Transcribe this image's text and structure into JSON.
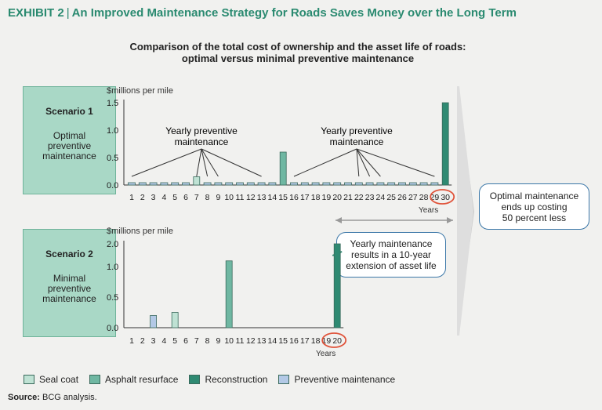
{
  "header": {
    "exhibit_label": "EXHIBIT 2",
    "separator": "|",
    "title": "An Improved Maintenance Strategy for Roads Saves Money over the Long Term"
  },
  "subtitle": {
    "line1": "Comparison of the total cost of ownership and the asset life of roads:",
    "line2": "optimal versus minimal preventive maintenance"
  },
  "scenario1": {
    "title": "Scenario 1",
    "desc": [
      "Optimal",
      "preventive",
      "maintenance"
    ]
  },
  "scenario2": {
    "title": "Scenario 2",
    "desc": [
      "Minimal",
      "preventive",
      "maintenance"
    ]
  },
  "annotations": {
    "yearly1": [
      "Yearly preventive",
      "maintenance"
    ],
    "yearly2": [
      "Yearly preventive",
      "maintenance"
    ],
    "callout_ext": [
      "Yearly maintenance",
      "results in a 10-year",
      "extension of asset life"
    ],
    "callout_cost": [
      "Optimal maintenance",
      "ends up costing",
      "50 percent less"
    ]
  },
  "legend": [
    {
      "label": "Seal coat",
      "color": "#bfe2d4"
    },
    {
      "label": "Asphalt resurface",
      "color": "#6fb7a2"
    },
    {
      "label": "Reconstruction",
      "color": "#2f8a72"
    },
    {
      "label": "Preventive maintenance",
      "color": "#b3c9e6"
    }
  ],
  "source": {
    "label": "Source:",
    "text": "BCG analysis."
  },
  "chart_data": [
    {
      "type": "bar",
      "ylabel": "$millions per mile",
      "xlabel": "Years",
      "ylim": [
        0,
        1.5
      ],
      "yticks": [
        "0.0",
        "0.5",
        "1.0",
        "1.5"
      ],
      "categories": [
        "1",
        "2",
        "3",
        "4",
        "5",
        "6",
        "7",
        "8",
        "9",
        "10",
        "11",
        "12",
        "13",
        "14",
        "15",
        "16",
        "17",
        "18",
        "19",
        "20",
        "21",
        "22",
        "23",
        "24",
        "25",
        "26",
        "27",
        "28",
        "29",
        "30"
      ],
      "highlight_category": "30",
      "series": [
        {
          "name": "Preventive maintenance",
          "values": [
            0.02,
            0.02,
            0.02,
            0.02,
            0.02,
            0.02,
            0,
            0.02,
            0.02,
            0.02,
            0.02,
            0.02,
            0.02,
            0.02,
            0,
            0.02,
            0.02,
            0.02,
            0.02,
            0.02,
            0.02,
            0.02,
            0.02,
            0.02,
            0.02,
            0.02,
            0.02,
            0.02,
            0.02,
            0
          ]
        },
        {
          "name": "Seal coat",
          "values": [
            0,
            0,
            0,
            0,
            0,
            0,
            0.15,
            0,
            0,
            0,
            0,
            0,
            0,
            0,
            0,
            0,
            0,
            0,
            0,
            0,
            0,
            0,
            0,
            0,
            0,
            0,
            0,
            0,
            0,
            0
          ]
        },
        {
          "name": "Asphalt resurface",
          "values": [
            0,
            0,
            0,
            0,
            0,
            0,
            0,
            0,
            0,
            0,
            0,
            0,
            0,
            0,
            0.6,
            0,
            0,
            0,
            0,
            0,
            0,
            0,
            0,
            0,
            0,
            0,
            0,
            0,
            0,
            0
          ]
        },
        {
          "name": "Reconstruction",
          "values": [
            0,
            0,
            0,
            0,
            0,
            0,
            0,
            0,
            0,
            0,
            0,
            0,
            0,
            0,
            0,
            0,
            0,
            0,
            0,
            0,
            0,
            0,
            0,
            0,
            0,
            0,
            0,
            0,
            0,
            1.5
          ]
        }
      ]
    },
    {
      "type": "bar",
      "ylabel": "$millions per mile",
      "xlabel": "Years",
      "ylim": [
        0,
        2.0
      ],
      "yticks": [
        "0.0",
        "0.5",
        "1.0",
        "2.0"
      ],
      "axis_break": true,
      "categories": [
        "1",
        "2",
        "3",
        "4",
        "5",
        "6",
        "7",
        "8",
        "9",
        "10",
        "11",
        "12",
        "13",
        "14",
        "15",
        "16",
        "17",
        "18",
        "19",
        "20"
      ],
      "highlight_category": "20",
      "series": [
        {
          "name": "Preventive maintenance",
          "values": [
            0,
            0,
            0.2,
            0,
            0,
            0,
            0,
            0,
            0,
            0,
            0,
            0,
            0,
            0,
            0,
            0,
            0,
            0,
            0,
            0
          ]
        },
        {
          "name": "Seal coat",
          "values": [
            0,
            0,
            0,
            0,
            0.25,
            0,
            0,
            0,
            0,
            0,
            0,
            0,
            0,
            0,
            0,
            0,
            0,
            0,
            0,
            0
          ]
        },
        {
          "name": "Asphalt resurface",
          "values": [
            0,
            0,
            0,
            0,
            0,
            0,
            0,
            0,
            0,
            1.25,
            0,
            0,
            0,
            0,
            0,
            0,
            0,
            0,
            0,
            0
          ]
        },
        {
          "name": "Reconstruction",
          "values": [
            0,
            0,
            0,
            0,
            0,
            0,
            0,
            0,
            0,
            0,
            0,
            0,
            0,
            0,
            0,
            0,
            0,
            0,
            0,
            2.0
          ]
        }
      ]
    }
  ]
}
